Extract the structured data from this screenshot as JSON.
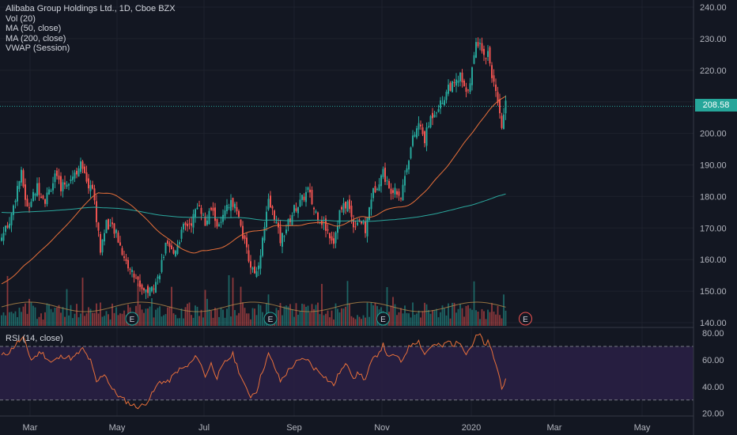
{
  "legend": {
    "title": "Alibaba Group Holdings Ltd., 1D, Cboe BZX",
    "vol": "Vol (20)",
    "ma50": "MA (50, close)",
    "ma200": "MA (200, close)",
    "vwap": "VWAP (Session)",
    "rsi": "RSI (14, close)"
  },
  "last_price": "208.58",
  "earnings_marker": "E",
  "colors": {
    "background": "#131722",
    "up": "#26a69a",
    "down": "#ef5350",
    "ma50": "#e8703a",
    "ma200": "#2ba79d",
    "rsi_line": "#e8703a",
    "rsi_band": "#2a2045"
  },
  "chart_data": [
    {
      "type": "candlestick",
      "title": "Alibaba Group Holdings Ltd., 1D, Cboe BZX",
      "x_ticks": [
        "Mar",
        "May",
        "Jul",
        "Sep",
        "Nov",
        "2020",
        "Mar",
        "May"
      ],
      "y_ticks": [
        140,
        150,
        160,
        170,
        180,
        190,
        200,
        210,
        220,
        230,
        240
      ],
      "ylim": [
        139,
        241
      ],
      "close_path": [
        [
          0,
          167
        ],
        [
          5,
          174
        ],
        [
          8,
          183
        ],
        [
          10,
          187
        ],
        [
          13,
          176
        ],
        [
          18,
          183
        ],
        [
          22,
          179
        ],
        [
          27,
          186
        ],
        [
          30,
          183
        ],
        [
          35,
          186
        ],
        [
          40,
          190
        ],
        [
          43,
          184
        ],
        [
          46,
          183
        ],
        [
          50,
          163
        ],
        [
          53,
          172
        ],
        [
          58,
          168
        ],
        [
          63,
          159
        ],
        [
          67,
          155
        ],
        [
          71,
          151
        ],
        [
          75,
          150
        ],
        [
          79,
          154
        ],
        [
          83,
          164
        ],
        [
          87,
          162
        ],
        [
          92,
          170
        ],
        [
          96,
          172
        ],
        [
          100,
          178
        ],
        [
          103,
          171
        ],
        [
          106,
          176
        ],
        [
          110,
          170
        ],
        [
          114,
          176
        ],
        [
          118,
          179
        ],
        [
          120,
          173
        ],
        [
          123,
          165
        ],
        [
          126,
          158
        ],
        [
          129,
          156
        ],
        [
          132,
          166
        ],
        [
          135,
          178
        ],
        [
          138,
          174
        ],
        [
          141,
          166
        ],
        [
          144,
          170
        ],
        [
          148,
          176
        ],
        [
          151,
          178
        ],
        [
          155,
          182
        ],
        [
          158,
          176
        ],
        [
          161,
          173
        ],
        [
          164,
          170
        ],
        [
          168,
          166
        ],
        [
          171,
          175
        ],
        [
          175,
          178
        ],
        [
          178,
          171
        ],
        [
          181,
          173
        ],
        [
          184,
          169
        ],
        [
          187,
          180
        ],
        [
          190,
          184
        ],
        [
          193,
          188
        ],
        [
          196,
          182
        ],
        [
          199,
          183
        ],
        [
          202,
          180
        ],
        [
          205,
          190
        ],
        [
          208,
          198
        ],
        [
          211,
          203
        ],
        [
          214,
          198
        ],
        [
          217,
          205
        ],
        [
          220,
          208
        ],
        [
          223,
          210
        ],
        [
          226,
          215
        ],
        [
          229,
          215
        ],
        [
          232,
          218
        ],
        [
          235,
          212
        ],
        [
          238,
          220
        ],
        [
          240,
          228
        ],
        [
          242,
          230
        ],
        [
          244,
          224
        ],
        [
          246,
          226
        ],
        [
          248,
          219
        ],
        [
          250,
          212
        ],
        [
          252,
          205
        ],
        [
          253,
          202
        ],
        [
          255,
          209
        ]
      ],
      "candle_colors": "mixed up/down",
      "volume_note": "volume bars in lower area with 20-day average"
    },
    {
      "type": "line",
      "name": "RSI (14, close)",
      "y_ticks": [
        20,
        40,
        60,
        80
      ],
      "ylim": [
        18,
        83
      ],
      "band": [
        30,
        70
      ],
      "values": [
        [
          0,
          63
        ],
        [
          4,
          66
        ],
        [
          8,
          73
        ],
        [
          11,
          76
        ],
        [
          15,
          60
        ],
        [
          20,
          66
        ],
        [
          25,
          58
        ],
        [
          31,
          63
        ],
        [
          36,
          61
        ],
        [
          41,
          68
        ],
        [
          45,
          59
        ],
        [
          48,
          43
        ],
        [
          52,
          50
        ],
        [
          56,
          38
        ],
        [
          60,
          32
        ],
        [
          64,
          28
        ],
        [
          68,
          25
        ],
        [
          72,
          26
        ],
        [
          76,
          34
        ],
        [
          80,
          44
        ],
        [
          84,
          43
        ],
        [
          89,
          52
        ],
        [
          94,
          55
        ],
        [
          99,
          63
        ],
        [
          103,
          48
        ],
        [
          106,
          57
        ],
        [
          109,
          47
        ],
        [
          113,
          58
        ],
        [
          117,
          64
        ],
        [
          120,
          52
        ],
        [
          123,
          40
        ],
        [
          126,
          33
        ],
        [
          129,
          37
        ],
        [
          132,
          52
        ],
        [
          135,
          64
        ],
        [
          138,
          55
        ],
        [
          141,
          44
        ],
        [
          145,
          52
        ],
        [
          149,
          58
        ],
        [
          154,
          61
        ],
        [
          158,
          54
        ],
        [
          162,
          50
        ],
        [
          165,
          45
        ],
        [
          168,
          41
        ],
        [
          171,
          51
        ],
        [
          175,
          57
        ],
        [
          178,
          47
        ],
        [
          181,
          50
        ],
        [
          184,
          45
        ],
        [
          187,
          58
        ],
        [
          190,
          64
        ],
        [
          193,
          71
        ],
        [
          196,
          61
        ],
        [
          199,
          64
        ],
        [
          202,
          58
        ],
        [
          205,
          67
        ],
        [
          208,
          73
        ],
        [
          211,
          74
        ],
        [
          214,
          64
        ],
        [
          217,
          70
        ],
        [
          220,
          71
        ],
        [
          223,
          70
        ],
        [
          226,
          74
        ],
        [
          229,
          71
        ],
        [
          232,
          74
        ],
        [
          235,
          65
        ],
        [
          238,
          71
        ],
        [
          240,
          77
        ],
        [
          242,
          79
        ],
        [
          244,
          71
        ],
        [
          246,
          73
        ],
        [
          248,
          66
        ],
        [
          250,
          57
        ],
        [
          252,
          46
        ],
        [
          253,
          40
        ],
        [
          255,
          44
        ]
      ]
    }
  ]
}
